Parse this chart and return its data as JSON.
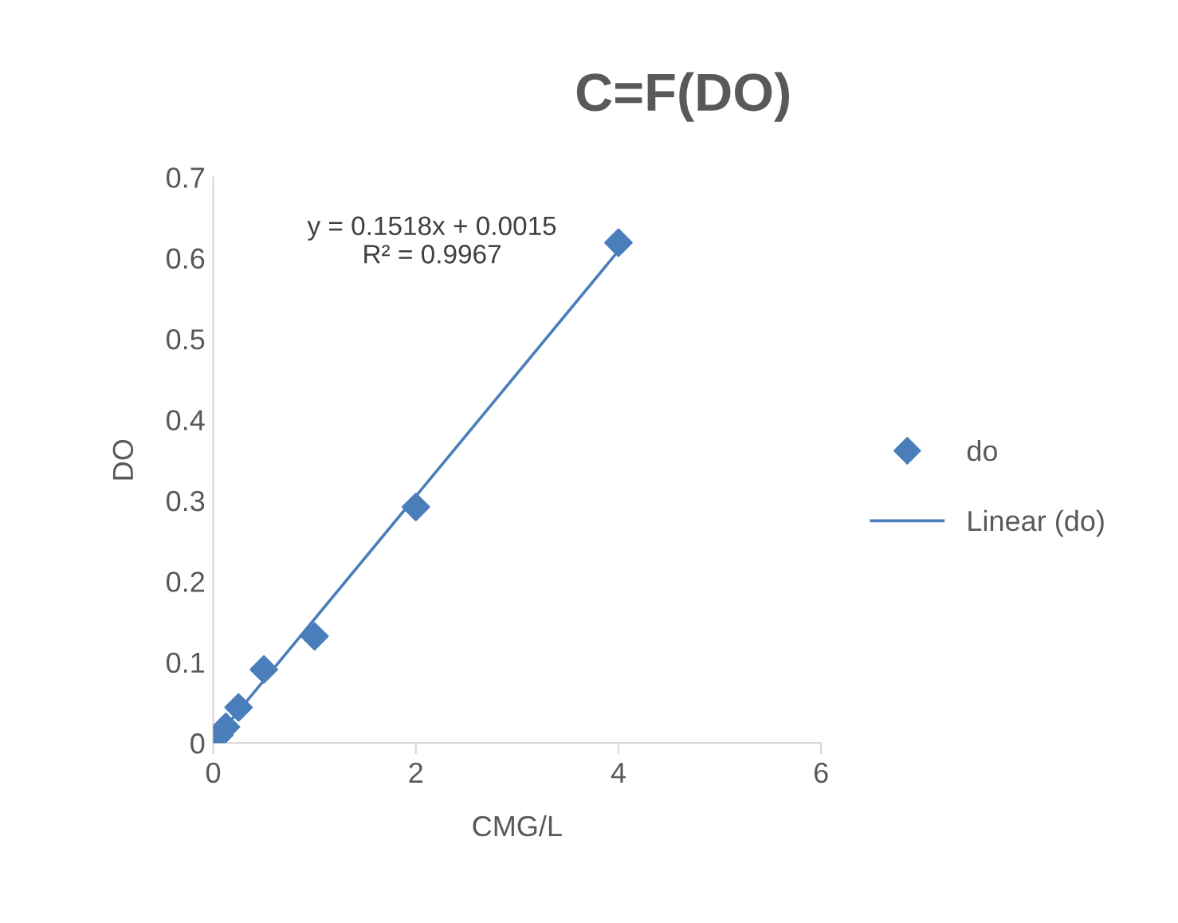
{
  "chart_data": {
    "type": "scatter",
    "title": "C=F(DO)",
    "xlabel": "CMG/L",
    "ylabel": "DO",
    "xlim": [
      0,
      6
    ],
    "xticks": [
      0,
      2,
      4,
      6
    ],
    "ylim": [
      0,
      0.7
    ],
    "yticks": [
      0,
      0.1,
      0.2,
      0.3,
      0.4,
      0.5,
      0.6,
      0.7
    ],
    "grid": false,
    "legend": "right",
    "series": [
      {
        "name": "do",
        "marker": "diamond",
        "color": "#4a7ebb",
        "x": [
          0.0625,
          0.125,
          0.25,
          0.5,
          1,
          2,
          4
        ],
        "values": [
          0.01,
          0.02,
          0.044,
          0.091,
          0.132,
          0.292,
          0.619
        ]
      },
      {
        "name": "Linear (do)",
        "type": "line",
        "color": "#4a7ebb",
        "line_style": "solid",
        "marker": "none",
        "x": [
          0.0625,
          4
        ],
        "values": [
          0.011,
          0.609
        ]
      }
    ],
    "annotations": [
      "y = 0.1518x + 0.0015",
      "R² = 0.9967"
    ]
  }
}
